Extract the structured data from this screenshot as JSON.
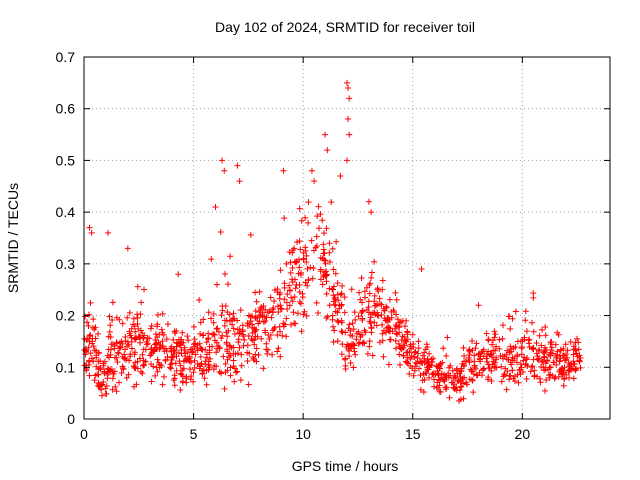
{
  "chart_data": {
    "type": "scatter",
    "title": "Day 102 of 2024, SRMTID for receiver toil",
    "xlabel": "GPS time / hours",
    "ylabel": "SRMTID / TECUs",
    "xlim": [
      0,
      24
    ],
    "ylim": [
      0,
      0.7
    ],
    "xticks": [
      0,
      5,
      10,
      15,
      20
    ],
    "xtick_labels": [
      "0",
      "5",
      "10",
      "15",
      "20"
    ],
    "yticks": [
      0,
      0.1,
      0.2,
      0.3,
      0.4,
      0.5,
      0.6,
      0.7
    ],
    "ytick_labels": [
      "0",
      "0.1",
      "0.2",
      "0.3",
      "0.4",
      "0.5",
      "0.6",
      "0.7"
    ],
    "grid": true,
    "marker": "+",
    "marker_color": "#ff0000",
    "point_count": 1400,
    "envelope": {
      "x": [
        0,
        0.3,
        0.8,
        1.5,
        2.5,
        3.5,
        4.5,
        5.5,
        6.2,
        6.8,
        7.5,
        8.3,
        9.0,
        9.6,
        10.2,
        10.8,
        11.3,
        11.8,
        12.2,
        12.8,
        13.5,
        14.2,
        15.0,
        15.6,
        16.2,
        17.0,
        17.6,
        18.3,
        19.0,
        20.0,
        21.0,
        22.0,
        22.7
      ],
      "median": [
        0.13,
        0.17,
        0.08,
        0.13,
        0.14,
        0.13,
        0.12,
        0.13,
        0.16,
        0.15,
        0.15,
        0.19,
        0.21,
        0.25,
        0.3,
        0.32,
        0.25,
        0.18,
        0.15,
        0.2,
        0.21,
        0.17,
        0.12,
        0.1,
        0.09,
        0.07,
        0.1,
        0.12,
        0.12,
        0.12,
        0.12,
        0.1,
        0.12
      ],
      "spread": [
        0.05,
        0.07,
        0.03,
        0.05,
        0.05,
        0.04,
        0.04,
        0.04,
        0.07,
        0.06,
        0.05,
        0.05,
        0.06,
        0.07,
        0.07,
        0.07,
        0.06,
        0.05,
        0.05,
        0.05,
        0.05,
        0.04,
        0.03,
        0.03,
        0.03,
        0.02,
        0.04,
        0.04,
        0.04,
        0.04,
        0.04,
        0.03,
        0.03
      ]
    },
    "peaks": [
      {
        "x": 0.25,
        "y": 0.37
      },
      {
        "x": 0.35,
        "y": 0.36
      },
      {
        "x": 1.1,
        "y": 0.36
      },
      {
        "x": 2.0,
        "y": 0.33
      },
      {
        "x": 4.3,
        "y": 0.28
      },
      {
        "x": 6.0,
        "y": 0.41
      },
      {
        "x": 6.3,
        "y": 0.5
      },
      {
        "x": 6.4,
        "y": 0.48
      },
      {
        "x": 7.0,
        "y": 0.49
      },
      {
        "x": 7.1,
        "y": 0.46
      },
      {
        "x": 9.1,
        "y": 0.48
      },
      {
        "x": 10.4,
        "y": 0.48
      },
      {
        "x": 10.5,
        "y": 0.46
      },
      {
        "x": 11.0,
        "y": 0.55
      },
      {
        "x": 11.1,
        "y": 0.52
      },
      {
        "x": 11.7,
        "y": 0.47
      },
      {
        "x": 12.0,
        "y": 0.65
      },
      {
        "x": 12.05,
        "y": 0.64
      },
      {
        "x": 12.1,
        "y": 0.62
      },
      {
        "x": 12.05,
        "y": 0.58
      },
      {
        "x": 12.1,
        "y": 0.55
      },
      {
        "x": 12.0,
        "y": 0.5
      },
      {
        "x": 13.0,
        "y": 0.42
      },
      {
        "x": 13.1,
        "y": 0.4
      },
      {
        "x": 15.4,
        "y": 0.29
      },
      {
        "x": 18.0,
        "y": 0.22
      }
    ]
  }
}
